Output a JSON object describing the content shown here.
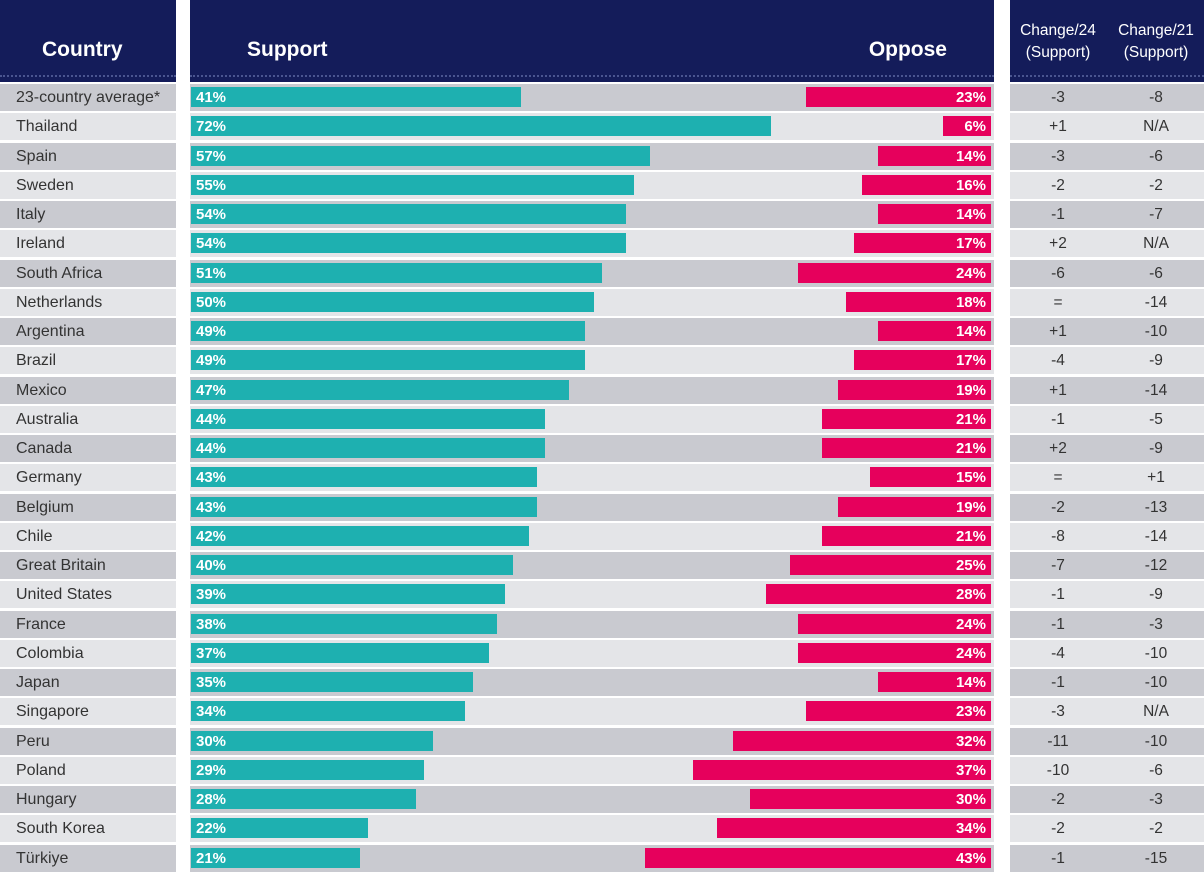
{
  "headers": {
    "country": "Country",
    "support": "Support",
    "oppose": "Oppose",
    "change24": "Change/24\n(Support)",
    "change21": "Change/21\n(Support)"
  },
  "colors": {
    "header_bg": "#141c5a",
    "support": "#1eb0b0",
    "oppose": "#e6005c"
  },
  "chart_data": {
    "type": "bar",
    "categories": [
      "23-country average*",
      "Thailand",
      "Spain",
      "Sweden",
      "Italy",
      "Ireland",
      "South Africa",
      "Netherlands",
      "Argentina",
      "Brazil",
      "Mexico",
      "Australia",
      "Canada",
      "Germany",
      "Belgium",
      "Chile",
      "Great Britain",
      "United States",
      "France",
      "Colombia",
      "Japan",
      "Singapore",
      "Peru",
      "Poland",
      "Hungary",
      "South Korea",
      "Türkiye"
    ],
    "series": [
      {
        "name": "Support",
        "values": [
          41,
          72,
          57,
          55,
          54,
          54,
          51,
          50,
          49,
          49,
          47,
          44,
          44,
          43,
          43,
          42,
          40,
          39,
          38,
          37,
          35,
          34,
          30,
          29,
          28,
          22,
          21
        ]
      },
      {
        "name": "Oppose",
        "values": [
          23,
          6,
          14,
          16,
          14,
          17,
          24,
          18,
          14,
          17,
          19,
          21,
          21,
          15,
          19,
          21,
          25,
          28,
          24,
          24,
          14,
          23,
          32,
          37,
          30,
          34,
          43
        ]
      }
    ],
    "change24": [
      "-3",
      "+1",
      "-3",
      "-2",
      "-1",
      "+2",
      "-6",
      "=",
      "+1",
      "-4",
      "+1",
      "-1",
      "+2",
      "=",
      "-2",
      "-8",
      "-7",
      "-1",
      "-1",
      "-4",
      "-1",
      "-3",
      "-11",
      "-10",
      "-2",
      "-2",
      "-1"
    ],
    "change21": [
      "-8",
      "N/A",
      "-6",
      "-2",
      "-7",
      "N/A",
      "-6",
      "-14",
      "-10",
      "-9",
      "-14",
      "-5",
      "-9",
      "+1",
      "-13",
      "-14",
      "-12",
      "-9",
      "-3",
      "-10",
      "-10",
      "N/A",
      "-10",
      "-6",
      "-3",
      "-2",
      "-15"
    ],
    "value_suffix": "%",
    "orientation": "horizontal",
    "xlim": [
      0,
      100
    ]
  }
}
